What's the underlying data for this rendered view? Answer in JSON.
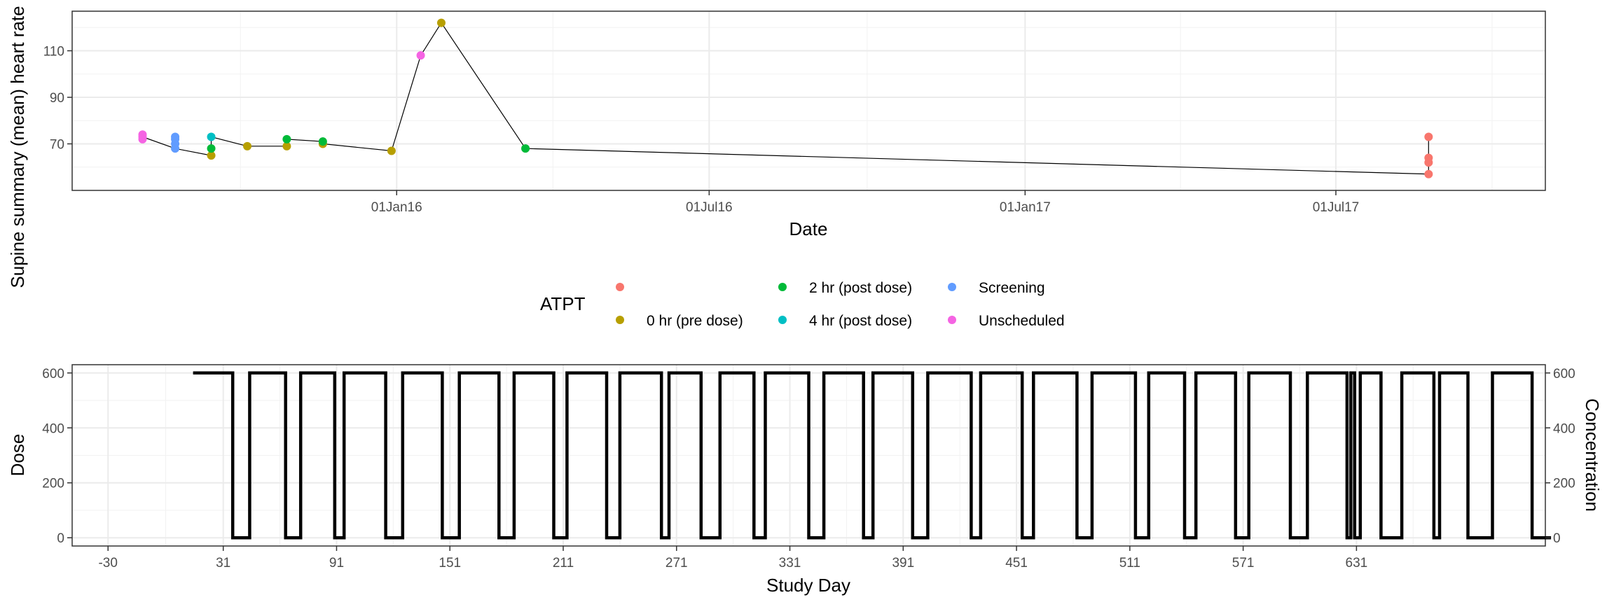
{
  "chart_data": [
    {
      "type": "scatter",
      "title": "",
      "xlabel": "Date",
      "ylabel": "Supine summary (mean) heart rate",
      "x_is_date": true,
      "xlim": [
        "2015-06-26",
        "2017-10-31"
      ],
      "ylim": [
        50,
        127
      ],
      "x_ticks": [
        "2016-01-01",
        "2016-07-01",
        "2017-01-01",
        "2017-07-01"
      ],
      "x_tick_labels": [
        "01Jan16",
        "01Jul16",
        "01Jan17",
        "01Jul17"
      ],
      "y_ticks": [
        70,
        90,
        110
      ],
      "grid": true,
      "line_color": "#000000",
      "path": [
        {
          "x": "2015-08-06",
          "y": 73
        },
        {
          "x": "2015-08-25",
          "y": 68
        },
        {
          "x": "2015-09-15",
          "y": 65
        },
        {
          "x": "2015-09-15",
          "y": 68
        },
        {
          "x": "2015-09-15",
          "y": 73
        },
        {
          "x": "2015-10-06",
          "y": 69
        },
        {
          "x": "2015-10-29",
          "y": 69
        },
        {
          "x": "2015-10-29",
          "y": 72
        },
        {
          "x": "2015-11-19",
          "y": 71
        },
        {
          "x": "2015-11-19",
          "y": 70
        },
        {
          "x": "2015-12-29",
          "y": 67
        },
        {
          "x": "2016-01-15",
          "y": 108
        },
        {
          "x": "2016-01-27",
          "y": 122
        },
        {
          "x": "2016-03-16",
          "y": 68
        },
        {
          "x": "2017-08-24",
          "y": 57
        },
        {
          "x": "2017-08-24",
          "y": 62
        },
        {
          "x": "2017-08-24",
          "y": 64
        },
        {
          "x": "2017-08-24",
          "y": 73
        }
      ],
      "series": [
        {
          "name": "",
          "color": "#F8766D",
          "points": [
            {
              "x": "2017-08-24",
              "y": 73
            },
            {
              "x": "2017-08-24",
              "y": 64
            },
            {
              "x": "2017-08-24",
              "y": 62
            },
            {
              "x": "2017-08-24",
              "y": 57
            }
          ]
        },
        {
          "name": "0 hr (pre dose)",
          "color": "#B79F00",
          "points": [
            {
              "x": "2015-09-15",
              "y": 65
            },
            {
              "x": "2015-10-06",
              "y": 69
            },
            {
              "x": "2015-10-29",
              "y": 69
            },
            {
              "x": "2015-11-19",
              "y": 70
            },
            {
              "x": "2015-12-29",
              "y": 67
            },
            {
              "x": "2016-01-27",
              "y": 122
            }
          ]
        },
        {
          "name": "2 hr (post dose)",
          "color": "#00BA38",
          "points": [
            {
              "x": "2015-09-15",
              "y": 68
            },
            {
              "x": "2015-10-29",
              "y": 72
            },
            {
              "x": "2015-11-19",
              "y": 71
            },
            {
              "x": "2016-03-16",
              "y": 68
            }
          ]
        },
        {
          "name": "4 hr (post dose)",
          "color": "#00BFC4",
          "points": [
            {
              "x": "2015-09-15",
              "y": 73
            }
          ]
        },
        {
          "name": "Screening",
          "color": "#619CFF",
          "points": [
            {
              "x": "2015-08-25",
              "y": 73
            },
            {
              "x": "2015-08-25",
              "y": 72
            },
            {
              "x": "2015-08-25",
              "y": 70
            },
            {
              "x": "2015-08-25",
              "y": 68
            }
          ]
        },
        {
          "name": "Unscheduled",
          "color": "#F564E3",
          "points": [
            {
              "x": "2015-08-06",
              "y": 74
            },
            {
              "x": "2015-08-06",
              "y": 73
            },
            {
              "x": "2015-08-06",
              "y": 72
            },
            {
              "x": "2016-01-15",
              "y": 108
            }
          ]
        }
      ]
    },
    {
      "type": "line",
      "title": "",
      "xlabel": "Study Day",
      "ylabel": "Dose",
      "ylabel_right": "Concentration",
      "xlim": [
        -49,
        731
      ],
      "ylim": [
        -30,
        630
      ],
      "x_ticks": [
        -30,
        31,
        91,
        151,
        211,
        271,
        331,
        391,
        451,
        511,
        571,
        631
      ],
      "y_ticks": [
        0,
        200,
        400,
        600
      ],
      "y_ticks_right": [
        0,
        200,
        400,
        600
      ],
      "grid": true,
      "step": true,
      "line_color": "#000000",
      "series": [
        {
          "name": "",
          "values": [
            [
              15,
              600
            ],
            [
              36,
              600
            ],
            [
              36,
              0
            ],
            [
              45,
              0
            ],
            [
              45,
              600
            ],
            [
              64,
              600
            ],
            [
              64,
              0
            ],
            [
              72,
              0
            ],
            [
              72,
              600
            ],
            [
              90,
              600
            ],
            [
              90,
              0
            ],
            [
              95,
              0
            ],
            [
              95,
              600
            ],
            [
              117,
              600
            ],
            [
              117,
              0
            ],
            [
              126,
              0
            ],
            [
              126,
              600
            ],
            [
              147,
              600
            ],
            [
              147,
              0
            ],
            [
              156,
              0
            ],
            [
              156,
              600
            ],
            [
              177,
              600
            ],
            [
              177,
              0
            ],
            [
              185,
              0
            ],
            [
              185,
              600
            ],
            [
              206,
              600
            ],
            [
              206,
              0
            ],
            [
              213,
              0
            ],
            [
              213,
              600
            ],
            [
              234,
              600
            ],
            [
              234,
              0
            ],
            [
              241,
              0
            ],
            [
              241,
              600
            ],
            [
              263,
              600
            ],
            [
              263,
              0
            ],
            [
              267,
              0
            ],
            [
              267,
              600
            ],
            [
              284,
              600
            ],
            [
              284,
              0
            ],
            [
              294,
              0
            ],
            [
              294,
              600
            ],
            [
              312,
              600
            ],
            [
              312,
              0
            ],
            [
              318,
              0
            ],
            [
              318,
              600
            ],
            [
              341,
              600
            ],
            [
              341,
              0
            ],
            [
              349,
              0
            ],
            [
              349,
              600
            ],
            [
              370,
              600
            ],
            [
              370,
              0
            ],
            [
              375,
              0
            ],
            [
              375,
              600
            ],
            [
              396,
              600
            ],
            [
              396,
              0
            ],
            [
              404,
              0
            ],
            [
              404,
              600
            ],
            [
              427,
              600
            ],
            [
              427,
              0
            ],
            [
              432,
              0
            ],
            [
              432,
              600
            ],
            [
              454,
              600
            ],
            [
              454,
              0
            ],
            [
              460,
              0
            ],
            [
              460,
              600
            ],
            [
              483,
              600
            ],
            [
              483,
              0
            ],
            [
              491,
              0
            ],
            [
              491,
              600
            ],
            [
              514,
              600
            ],
            [
              514,
              0
            ],
            [
              521,
              0
            ],
            [
              521,
              600
            ],
            [
              540,
              600
            ],
            [
              540,
              0
            ],
            [
              546,
              0
            ],
            [
              546,
              600
            ],
            [
              567,
              600
            ],
            [
              567,
              0
            ],
            [
              574,
              0
            ],
            [
              574,
              600
            ],
            [
              596,
              600
            ],
            [
              596,
              0
            ],
            [
              605,
              0
            ],
            [
              605,
              600
            ],
            [
              626,
              600
            ],
            [
              626,
              0
            ],
            [
              628,
              0
            ],
            [
              628,
              600
            ],
            [
              630,
              600
            ],
            [
              630,
              0
            ],
            [
              633,
              0
            ],
            [
              633,
              600
            ],
            [
              644,
              600
            ],
            [
              644,
              0
            ],
            [
              655,
              0
            ],
            [
              655,
              600
            ],
            [
              672,
              600
            ],
            [
              672,
              0
            ],
            [
              675,
              0
            ],
            [
              675,
              600
            ],
            [
              690,
              600
            ],
            [
              690,
              0
            ],
            [
              703,
              0
            ],
            [
              703,
              600
            ],
            [
              724,
              600
            ],
            [
              724,
              0
            ],
            [
              734,
              0
            ]
          ]
        }
      ]
    }
  ],
  "legend": {
    "title": "ATPT",
    "placement": "between-panels",
    "entries": [
      {
        "label": "",
        "color": "#F8766D"
      },
      {
        "label": "0 hr (pre dose)",
        "color": "#B79F00"
      },
      {
        "label": "2 hr (post dose)",
        "color": "#00BA38"
      },
      {
        "label": "4 hr (post dose)",
        "color": "#00BFC4"
      },
      {
        "label": "Screening",
        "color": "#619CFF"
      },
      {
        "label": "Unscheduled",
        "color": "#F564E3"
      }
    ]
  }
}
